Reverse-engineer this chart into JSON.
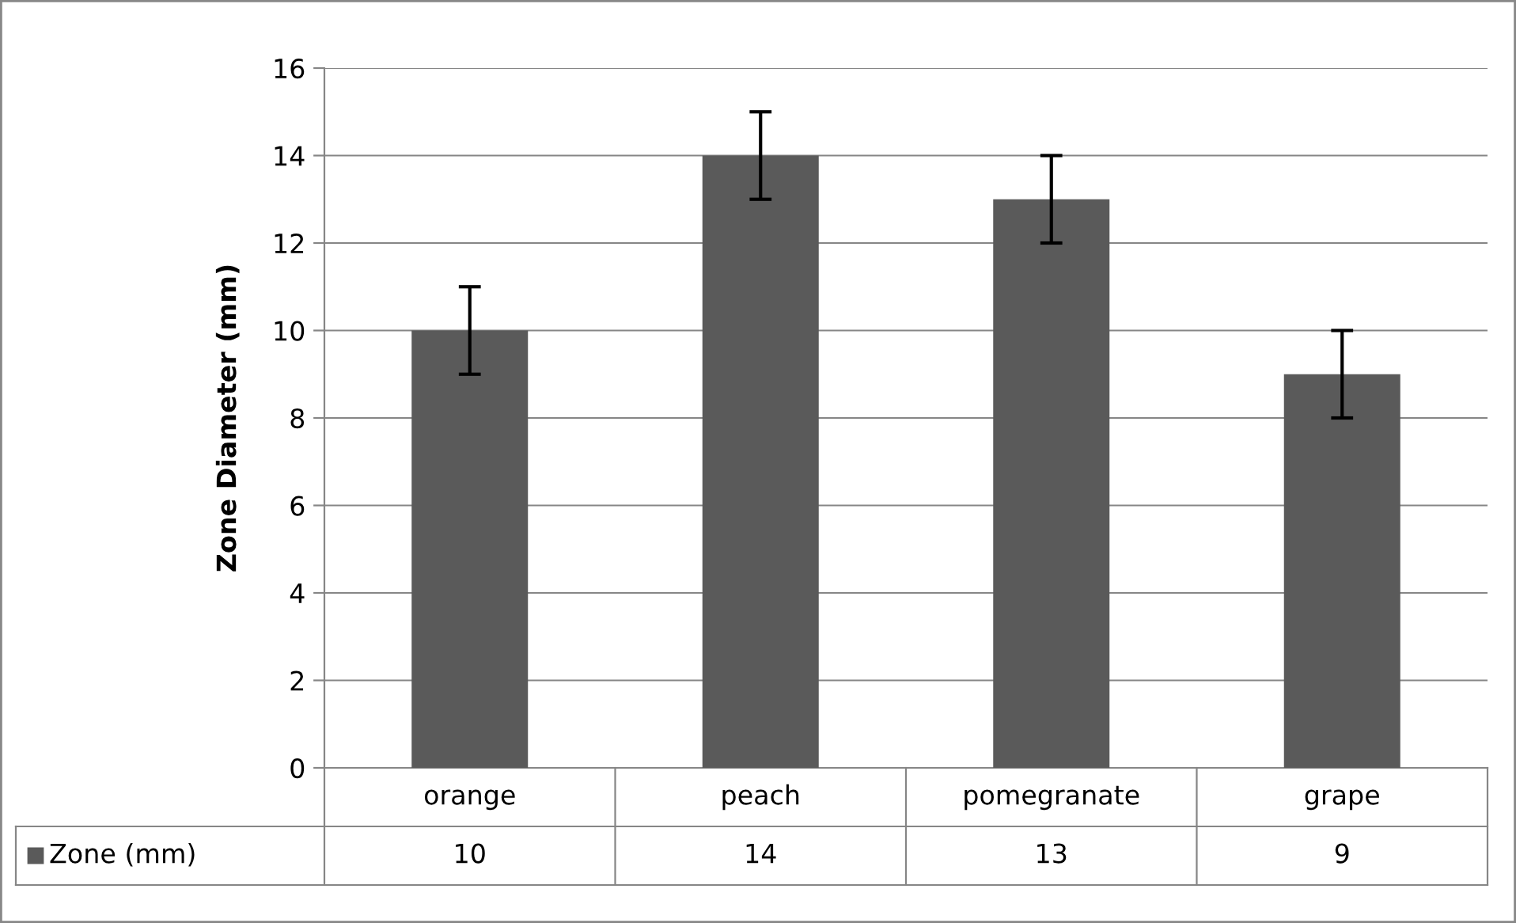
{
  "chart_data": {
    "type": "bar",
    "ylabel": "Zone Diameter (mm)",
    "categories": [
      "orange",
      "peach",
      "pomegranate",
      "grape"
    ],
    "series": [
      {
        "name": "Zone (mm)",
        "color": "#5a5a5a",
        "values": [
          10,
          14,
          13,
          9
        ],
        "errors": [
          1,
          1,
          1,
          1
        ]
      }
    ],
    "ylim": [
      0,
      16
    ],
    "yticks": [
      0,
      2,
      4,
      6,
      8,
      10,
      12,
      14,
      16
    ],
    "grid": "y",
    "legend": "bottom",
    "data_labels": true
  }
}
